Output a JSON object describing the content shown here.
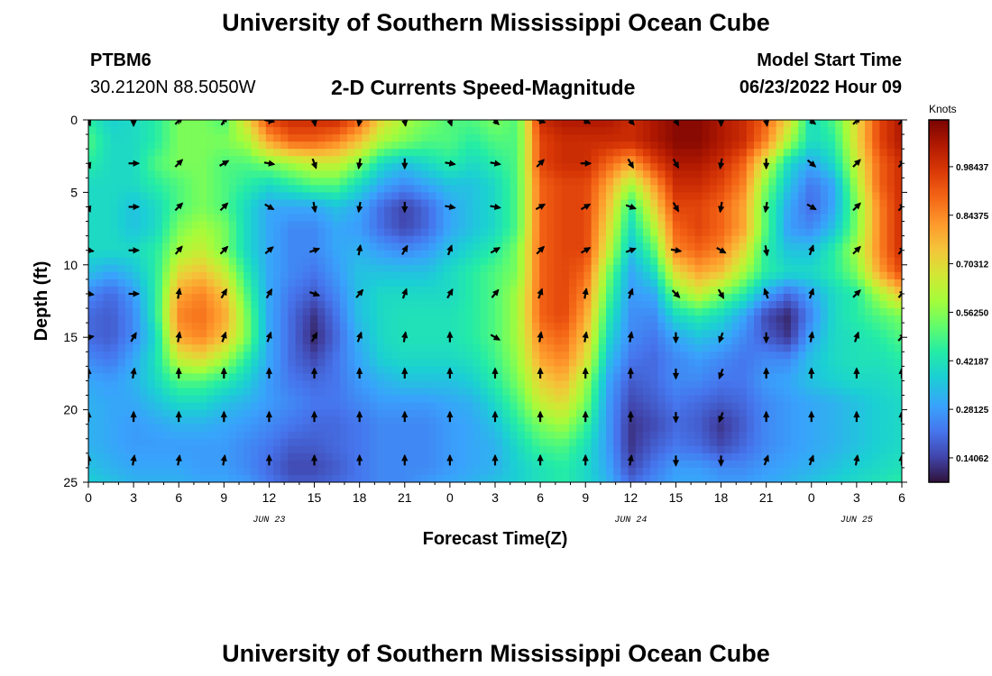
{
  "header": {
    "title": "University of Southern Mississippi Ocean Cube",
    "station_id": "PTBM6",
    "station_coords": "30.2120N  88.5050W",
    "plot_title": "2-D Currents Speed-Magnitude",
    "model_start_label": "Model Start Time",
    "model_start_value": "06/23/2022 Hour 09"
  },
  "footer": {
    "title": "University of Southern Mississippi Ocean Cube"
  },
  "chart_data": {
    "type": "heatmap",
    "title": "2-D Currents Speed-Magnitude",
    "xlabel": "Forecast Time(Z)",
    "ylabel": "Depth (ft)",
    "x_ticks": [
      "0",
      "3",
      "6",
      "9",
      "12",
      "15",
      "18",
      "21",
      "0",
      "3",
      "6",
      "9",
      "12",
      "15",
      "18",
      "21",
      "0",
      "3",
      "6"
    ],
    "x_tick_hours": [
      0,
      3,
      6,
      9,
      12,
      15,
      18,
      21,
      24,
      27,
      30,
      33,
      36,
      39,
      42,
      45,
      48,
      51,
      54
    ],
    "date_labels": [
      {
        "text": "JUN 23",
        "hour": 12
      },
      {
        "text": "JUN 24",
        "hour": 36
      },
      {
        "text": "JUN 25",
        "hour": 51
      }
    ],
    "y_ticks": [
      "0",
      "5",
      "10",
      "15",
      "20",
      "25"
    ],
    "y_tick_values": [
      0,
      5,
      10,
      15,
      20,
      25
    ],
    "xlim": [
      0,
      54
    ],
    "ylim": [
      0,
      25
    ],
    "colorbar": {
      "label": "Knots",
      "range": [
        0.07,
        1.12
      ],
      "tick_labels": [
        "0.98437",
        "0.84375",
        "0.70312",
        "0.56250",
        "0.42187",
        "0.28125",
        "0.14062"
      ],
      "tick_values": [
        0.98437,
        0.84375,
        0.70312,
        0.5625,
        0.42187,
        0.28125,
        0.14062
      ]
    },
    "speed_grid": {
      "hours": [
        0,
        1.5,
        3,
        4.5,
        6,
        7.5,
        9,
        10.5,
        12,
        13.5,
        15,
        16.5,
        18,
        19.5,
        21,
        22.5,
        24,
        25.5,
        27,
        28.5,
        30,
        31.5,
        33,
        34.5,
        36,
        37.5,
        39,
        40.5,
        42,
        43.5,
        45,
        46.5,
        48,
        49.5,
        51,
        52.5,
        54
      ],
      "depths": [
        0,
        1.5,
        3,
        4.5,
        6,
        7.5,
        9,
        10.5,
        12,
        13.5,
        15,
        16.5,
        18,
        19.5,
        21,
        22.5,
        24,
        25
      ],
      "values_knots": [
        [
          0.45,
          0.38,
          0.4,
          0.45,
          0.55,
          0.55,
          0.5,
          0.7,
          0.95,
          1.0,
          1.0,
          1.0,
          0.9,
          0.7,
          0.6,
          0.55,
          0.5,
          0.5,
          0.55,
          0.5,
          1.0,
          1.05,
          1.05,
          1.05,
          1.0,
          1.05,
          1.1,
          1.1,
          1.05,
          1.0,
          0.9,
          0.7,
          0.4,
          0.5,
          0.7,
          0.95,
          1.05
        ],
        [
          0.5,
          0.4,
          0.4,
          0.45,
          0.55,
          0.55,
          0.55,
          0.6,
          0.8,
          0.9,
          0.9,
          0.85,
          0.75,
          0.6,
          0.55,
          0.5,
          0.5,
          0.45,
          0.5,
          0.5,
          0.95,
          1.0,
          1.0,
          1.0,
          1.0,
          1.05,
          1.1,
          1.1,
          1.05,
          1.0,
          0.85,
          0.6,
          0.4,
          0.45,
          0.7,
          0.95,
          1.05
        ],
        [
          0.45,
          0.4,
          0.4,
          0.5,
          0.55,
          0.55,
          0.5,
          0.5,
          0.55,
          0.6,
          0.65,
          0.65,
          0.55,
          0.4,
          0.35,
          0.4,
          0.45,
          0.4,
          0.45,
          0.5,
          0.95,
          1.0,
          1.0,
          0.9,
          0.8,
          0.95,
          1.05,
          1.05,
          1.0,
          0.9,
          0.65,
          0.4,
          0.3,
          0.4,
          0.65,
          0.9,
          1.0
        ],
        [
          0.4,
          0.4,
          0.4,
          0.45,
          0.5,
          0.55,
          0.5,
          0.45,
          0.4,
          0.45,
          0.5,
          0.5,
          0.4,
          0.3,
          0.25,
          0.3,
          0.35,
          0.35,
          0.4,
          0.5,
          0.9,
          0.95,
          0.95,
          0.8,
          0.6,
          0.8,
          1.0,
          1.0,
          0.95,
          0.85,
          0.55,
          0.35,
          0.22,
          0.3,
          0.6,
          0.9,
          1.0
        ],
        [
          0.4,
          0.4,
          0.35,
          0.4,
          0.5,
          0.55,
          0.5,
          0.4,
          0.3,
          0.3,
          0.3,
          0.35,
          0.3,
          0.2,
          0.14,
          0.2,
          0.3,
          0.35,
          0.4,
          0.5,
          0.9,
          0.95,
          0.95,
          0.75,
          0.45,
          0.7,
          0.95,
          0.95,
          0.9,
          0.8,
          0.5,
          0.3,
          0.2,
          0.3,
          0.55,
          0.85,
          1.0
        ],
        [
          0.4,
          0.4,
          0.35,
          0.4,
          0.55,
          0.6,
          0.55,
          0.4,
          0.3,
          0.25,
          0.25,
          0.3,
          0.28,
          0.2,
          0.15,
          0.2,
          0.3,
          0.35,
          0.4,
          0.5,
          0.9,
          0.95,
          0.95,
          0.7,
          0.4,
          0.6,
          0.9,
          0.95,
          0.9,
          0.8,
          0.5,
          0.28,
          0.25,
          0.35,
          0.55,
          0.85,
          1.0
        ],
        [
          0.4,
          0.4,
          0.4,
          0.45,
          0.6,
          0.65,
          0.55,
          0.4,
          0.3,
          0.25,
          0.25,
          0.3,
          0.32,
          0.28,
          0.25,
          0.28,
          0.35,
          0.4,
          0.45,
          0.55,
          0.9,
          0.95,
          0.95,
          0.65,
          0.35,
          0.5,
          0.85,
          0.9,
          0.85,
          0.7,
          0.45,
          0.35,
          0.35,
          0.45,
          0.6,
          0.85,
          1.0
        ],
        [
          0.35,
          0.3,
          0.35,
          0.45,
          0.7,
          0.75,
          0.65,
          0.45,
          0.3,
          0.25,
          0.22,
          0.28,
          0.35,
          0.35,
          0.35,
          0.35,
          0.4,
          0.45,
          0.5,
          0.55,
          0.9,
          0.95,
          0.9,
          0.55,
          0.3,
          0.4,
          0.7,
          0.8,
          0.75,
          0.6,
          0.45,
          0.4,
          0.4,
          0.45,
          0.55,
          0.8,
          0.95
        ],
        [
          0.25,
          0.2,
          0.28,
          0.45,
          0.8,
          0.85,
          0.75,
          0.5,
          0.3,
          0.22,
          0.18,
          0.25,
          0.35,
          0.4,
          0.4,
          0.4,
          0.4,
          0.45,
          0.5,
          0.6,
          0.9,
          0.95,
          0.85,
          0.5,
          0.28,
          0.3,
          0.55,
          0.65,
          0.55,
          0.45,
          0.3,
          0.2,
          0.3,
          0.4,
          0.45,
          0.6,
          0.75
        ],
        [
          0.2,
          0.18,
          0.25,
          0.45,
          0.85,
          0.88,
          0.8,
          0.55,
          0.3,
          0.2,
          0.12,
          0.22,
          0.35,
          0.4,
          0.42,
          0.42,
          0.42,
          0.45,
          0.5,
          0.6,
          0.9,
          0.95,
          0.8,
          0.45,
          0.26,
          0.25,
          0.4,
          0.45,
          0.4,
          0.3,
          0.15,
          0.1,
          0.25,
          0.4,
          0.45,
          0.5,
          0.55
        ],
        [
          0.2,
          0.18,
          0.25,
          0.4,
          0.8,
          0.85,
          0.75,
          0.55,
          0.3,
          0.2,
          0.1,
          0.2,
          0.32,
          0.4,
          0.42,
          0.42,
          0.42,
          0.45,
          0.5,
          0.6,
          0.85,
          0.9,
          0.75,
          0.4,
          0.25,
          0.22,
          0.3,
          0.35,
          0.32,
          0.25,
          0.18,
          0.12,
          0.3,
          0.4,
          0.42,
          0.45,
          0.5
        ],
        [
          0.25,
          0.22,
          0.3,
          0.42,
          0.65,
          0.7,
          0.6,
          0.45,
          0.3,
          0.2,
          0.15,
          0.22,
          0.3,
          0.38,
          0.4,
          0.4,
          0.4,
          0.42,
          0.48,
          0.58,
          0.8,
          0.85,
          0.7,
          0.35,
          0.22,
          0.2,
          0.25,
          0.28,
          0.25,
          0.22,
          0.25,
          0.25,
          0.35,
          0.4,
          0.42,
          0.42,
          0.45
        ],
        [
          0.3,
          0.28,
          0.32,
          0.4,
          0.5,
          0.5,
          0.45,
          0.38,
          0.28,
          0.22,
          0.2,
          0.22,
          0.28,
          0.32,
          0.35,
          0.35,
          0.35,
          0.38,
          0.45,
          0.55,
          0.72,
          0.78,
          0.6,
          0.3,
          0.18,
          0.2,
          0.25,
          0.25,
          0.22,
          0.22,
          0.28,
          0.3,
          0.35,
          0.38,
          0.4,
          0.4,
          0.42
        ],
        [
          0.32,
          0.3,
          0.3,
          0.35,
          0.4,
          0.4,
          0.35,
          0.32,
          0.28,
          0.25,
          0.22,
          0.22,
          0.25,
          0.28,
          0.28,
          0.28,
          0.3,
          0.32,
          0.4,
          0.5,
          0.65,
          0.7,
          0.55,
          0.28,
          0.15,
          0.18,
          0.22,
          0.2,
          0.18,
          0.2,
          0.25,
          0.28,
          0.3,
          0.32,
          0.35,
          0.38,
          0.4
        ],
        [
          0.32,
          0.3,
          0.28,
          0.3,
          0.32,
          0.32,
          0.3,
          0.28,
          0.25,
          0.22,
          0.2,
          0.2,
          0.22,
          0.25,
          0.25,
          0.25,
          0.28,
          0.3,
          0.35,
          0.45,
          0.55,
          0.6,
          0.48,
          0.28,
          0.12,
          0.15,
          0.2,
          0.18,
          0.12,
          0.18,
          0.25,
          0.28,
          0.3,
          0.32,
          0.35,
          0.38,
          0.4
        ],
        [
          0.32,
          0.3,
          0.28,
          0.28,
          0.28,
          0.28,
          0.28,
          0.25,
          0.22,
          0.18,
          0.18,
          0.2,
          0.22,
          0.25,
          0.25,
          0.25,
          0.28,
          0.3,
          0.32,
          0.4,
          0.48,
          0.5,
          0.42,
          0.28,
          0.12,
          0.18,
          0.22,
          0.2,
          0.15,
          0.2,
          0.25,
          0.28,
          0.3,
          0.32,
          0.35,
          0.38,
          0.4
        ],
        [
          0.35,
          0.32,
          0.3,
          0.3,
          0.3,
          0.28,
          0.28,
          0.25,
          0.2,
          0.15,
          0.15,
          0.18,
          0.22,
          0.25,
          0.25,
          0.25,
          0.28,
          0.3,
          0.32,
          0.38,
          0.42,
          0.45,
          0.4,
          0.3,
          0.15,
          0.22,
          0.28,
          0.28,
          0.25,
          0.25,
          0.28,
          0.3,
          0.32,
          0.35,
          0.38,
          0.4,
          0.42
        ],
        [
          0.38,
          0.35,
          0.32,
          0.32,
          0.32,
          0.3,
          0.3,
          0.28,
          0.22,
          0.18,
          0.18,
          0.2,
          0.22,
          0.25,
          0.25,
          0.28,
          0.3,
          0.32,
          0.35,
          0.38,
          0.42,
          0.45,
          0.4,
          0.32,
          0.2,
          0.25,
          0.3,
          0.3,
          0.28,
          0.28,
          0.3,
          0.32,
          0.35,
          0.38,
          0.4,
          0.42,
          0.45
        ]
      ]
    },
    "vectors": {
      "hours": [
        0,
        3,
        6,
        9,
        12,
        15,
        18,
        21,
        24,
        27,
        30,
        33,
        36,
        39,
        42,
        45,
        48,
        51,
        54
      ],
      "depths": [
        0,
        3,
        6,
        9,
        12,
        15,
        17.5,
        20.5,
        23.5
      ],
      "direction_deg": [
        [
          160,
          180,
          45,
          30,
          100,
          170,
          190,
          170,
          160,
          135,
          110,
          120,
          140,
          150,
          180,
          170,
          130,
          45,
          40
        ],
        [
          160,
          90,
          45,
          60,
          100,
          160,
          190,
          180,
          100,
          100,
          45,
          90,
          150,
          150,
          190,
          180,
          130,
          45,
          40
        ],
        [
          160,
          90,
          45,
          45,
          120,
          170,
          190,
          180,
          100,
          100,
          60,
          60,
          110,
          150,
          190,
          190,
          120,
          45,
          40
        ],
        [
          100,
          90,
          40,
          45,
          50,
          70,
          10,
          30,
          20,
          60,
          45,
          60,
          70,
          100,
          120,
          170,
          20,
          45,
          40
        ],
        [
          100,
          90,
          10,
          30,
          30,
          110,
          40,
          20,
          30,
          40,
          20,
          10,
          20,
          135,
          150,
          -20,
          20,
          45,
          40
        ],
        [
          80,
          30,
          10,
          20,
          20,
          30,
          20,
          10,
          0,
          120,
          10,
          10,
          10,
          180,
          200,
          180,
          10,
          20,
          45
        ],
        [
          0,
          10,
          0,
          0,
          0,
          0,
          0,
          0,
          0,
          0,
          0,
          0,
          0,
          180,
          200,
          0,
          0,
          0,
          0
        ],
        [
          0,
          0,
          0,
          0,
          0,
          0,
          0,
          0,
          0,
          0,
          0,
          0,
          0,
          180,
          200,
          0,
          0,
          0,
          0
        ],
        [
          0,
          10,
          10,
          10,
          0,
          0,
          0,
          0,
          0,
          0,
          0,
          0,
          10,
          180,
          180,
          20,
          20,
          10,
          0
        ]
      ]
    }
  }
}
